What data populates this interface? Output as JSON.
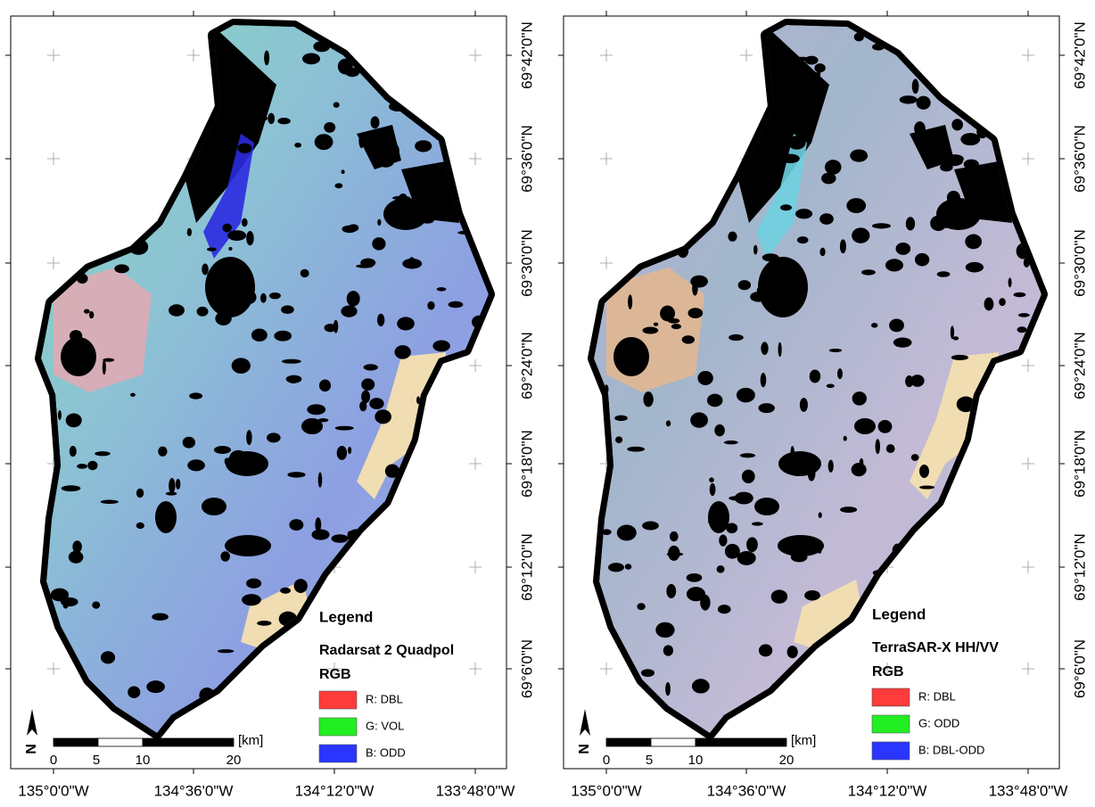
{
  "panels": [
    {
      "legend_title": "Legend",
      "title": "Radarsat 2 Quadpol",
      "legend_subtitle": "RGB",
      "legend_items": [
        {
          "label": "R: DBL",
          "color": "#ff3b3b"
        },
        {
          "label": "G: VOL",
          "color": "#22ee22"
        },
        {
          "label": "B: ODD",
          "color": "#2a35ff"
        }
      ]
    },
    {
      "legend_title": "Legend",
      "title": "TerraSAR-X HH/VV",
      "legend_subtitle": "RGB",
      "legend_items": [
        {
          "label": "R: DBL",
          "color": "#ff3b3b"
        },
        {
          "label": "G: ODD",
          "color": "#22ee22"
        },
        {
          "label": "B: DBL-ODD",
          "color": "#2a35ff"
        }
      ]
    }
  ],
  "longitude_labels": [
    "135°0'0\"W",
    "134°36'0\"W",
    "134°12'0\"W",
    "133°48'0\"W"
  ],
  "latitude_labels": [
    "69°42'0\"N",
    "69°36'0\"N",
    "69°30'0\"N",
    "69°24'0\"N",
    "69°18'0\"N",
    "69°12'0\"N",
    "69°6'0\"N"
  ],
  "scale_labels": [
    "0",
    "5",
    "10",
    "20"
  ],
  "scale_unit": "[km]",
  "north_label": "N"
}
